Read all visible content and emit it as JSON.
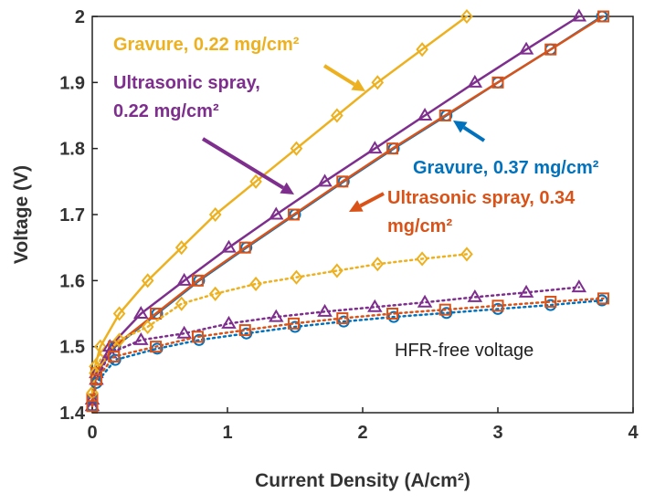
{
  "chart_data": {
    "type": "line",
    "xlabel": "Current Density (A/cm²)",
    "ylabel": "Voltage (V)",
    "xlim": [
      0,
      4
    ],
    "xticks": [
      0,
      1,
      2,
      3,
      4
    ],
    "ylim": [
      1.4,
      2
    ],
    "yticks": [
      1.4,
      1.5,
      1.6,
      1.7,
      1.8,
      1.9,
      2
    ],
    "series": [
      {
        "color": "#EDB120",
        "marker": "diamond",
        "style": "solid",
        "x": [
          0,
          0.02,
          0.06,
          0.2,
          0.41,
          0.66,
          0.91,
          1.21,
          1.51,
          1.81,
          2.11,
          2.44,
          2.77
        ],
        "values": [
          1.43,
          1.47,
          1.5,
          1.55,
          1.6,
          1.65,
          1.7,
          1.75,
          1.8,
          1.85,
          1.9,
          1.95,
          2.0
        ]
      },
      {
        "color": "#7E2F8E",
        "marker": "triangle",
        "style": "solid",
        "x": [
          0,
          0.03,
          0.13,
          0.36,
          0.68,
          1.01,
          1.36,
          1.72,
          2.09,
          2.46,
          2.83,
          3.21,
          3.6
        ],
        "values": [
          1.42,
          1.46,
          1.5,
          1.55,
          1.6,
          1.65,
          1.7,
          1.75,
          1.8,
          1.85,
          1.9,
          1.95,
          2.0
        ]
      },
      {
        "color": "#0072BD",
        "marker": "circle",
        "style": "solid",
        "x": [
          0,
          0.03,
          0.17,
          0.48,
          0.79,
          1.14,
          1.5,
          1.86,
          2.23,
          2.62,
          3.0,
          3.39,
          3.77
        ],
        "values": [
          1.42,
          1.46,
          1.5,
          1.55,
          1.6,
          1.65,
          1.7,
          1.75,
          1.8,
          1.85,
          1.9,
          1.95,
          2.0
        ]
      },
      {
        "color": "#D95319",
        "marker": "square",
        "style": "solid",
        "x": [
          0,
          0.03,
          0.16,
          0.47,
          0.78,
          1.13,
          1.49,
          1.85,
          2.22,
          2.61,
          3.0,
          3.39,
          3.78
        ],
        "values": [
          1.42,
          1.46,
          1.5,
          1.55,
          1.6,
          1.65,
          1.7,
          1.75,
          1.8,
          1.85,
          1.9,
          1.95,
          2.0
        ]
      },
      {
        "color": "#EDB120",
        "marker": "diamond",
        "style": "dotted",
        "x": [
          0,
          0.02,
          0.06,
          0.2,
          0.41,
          0.66,
          0.91,
          1.21,
          1.51,
          1.81,
          2.11,
          2.44,
          2.77
        ],
        "values": [
          1.43,
          1.46,
          1.48,
          1.51,
          1.53,
          1.565,
          1.58,
          1.595,
          1.605,
          1.615,
          1.625,
          1.633,
          1.64
        ]
      },
      {
        "color": "#7E2F8E",
        "marker": "triangle",
        "style": "dotted",
        "x": [
          0,
          0.03,
          0.13,
          0.36,
          0.68,
          1.01,
          1.36,
          1.72,
          2.09,
          2.46,
          2.83,
          3.21,
          3.6
        ],
        "values": [
          1.41,
          1.45,
          1.49,
          1.51,
          1.52,
          1.535,
          1.545,
          1.553,
          1.56,
          1.567,
          1.575,
          1.582,
          1.59
        ]
      },
      {
        "color": "#0072BD",
        "marker": "circle",
        "style": "dotted",
        "x": [
          0,
          0.03,
          0.17,
          0.48,
          0.79,
          1.14,
          1.5,
          1.86,
          2.23,
          2.62,
          3.0,
          3.39,
          3.77
        ],
        "values": [
          1.41,
          1.445,
          1.48,
          1.497,
          1.51,
          1.52,
          1.53,
          1.538,
          1.545,
          1.551,
          1.557,
          1.563,
          1.57
        ]
      },
      {
        "color": "#D95319",
        "marker": "square",
        "style": "dotted",
        "x": [
          0,
          0.03,
          0.16,
          0.47,
          0.78,
          1.13,
          1.49,
          1.85,
          2.22,
          2.61,
          3.0,
          3.39,
          3.78
        ],
        "values": [
          1.41,
          1.45,
          1.485,
          1.5,
          1.515,
          1.525,
          1.535,
          1.543,
          1.55,
          1.556,
          1.562,
          1.568,
          1.573
        ]
      }
    ],
    "annotations": [
      {
        "color": "#EDB120",
        "lines": [
          "Gravure, 0.22 mg/cm²"
        ]
      },
      {
        "color": "#7E2F8E",
        "lines": [
          "Ultrasonic spray,",
          "0.22 mg/cm²"
        ]
      },
      {
        "color": "#0072BD",
        "lines": [
          "Gravure, 0.37 mg/cm²"
        ]
      },
      {
        "color": "#D95319",
        "lines": [
          "Ultrasonic spray, 0.34",
          "mg/cm²"
        ]
      },
      {
        "color": "#222222",
        "lines": [
          "HFR-free voltage"
        ]
      }
    ]
  }
}
